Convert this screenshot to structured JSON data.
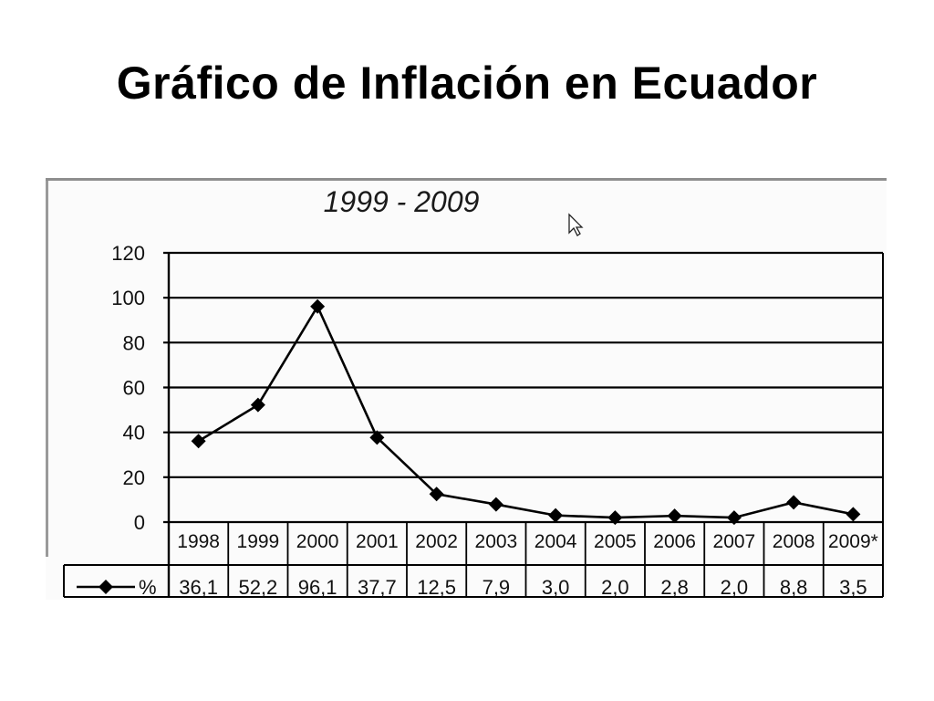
{
  "slide": {
    "title": "Gráfico de Inflación en Ecuador"
  },
  "chart_data": {
    "type": "line",
    "title": "1999 - 2009",
    "categories": [
      "1998",
      "1999",
      "2000",
      "2001",
      "2002",
      "2003",
      "2004",
      "2005",
      "2006",
      "2007",
      "2008",
      "2009*"
    ],
    "series": [
      {
        "name": "%",
        "values": [
          36.1,
          52.2,
          96.1,
          37.7,
          12.5,
          7.9,
          3.0,
          2.0,
          2.8,
          2.0,
          8.8,
          3.5
        ],
        "labels": [
          "36,1",
          "52,2",
          "96,1",
          "37,7",
          "12,5",
          "7,9",
          "3,0",
          "2,0",
          "2,8",
          "2,0",
          "8,8",
          "3,5"
        ]
      }
    ],
    "yticks": [
      "0",
      "20",
      "40",
      "60",
      "80",
      "100",
      "120"
    ],
    "ylim": [
      0,
      120
    ],
    "grid": true,
    "legend": "data-table-below",
    "colors": {
      "line": "#000000",
      "grid": "#000000"
    }
  }
}
